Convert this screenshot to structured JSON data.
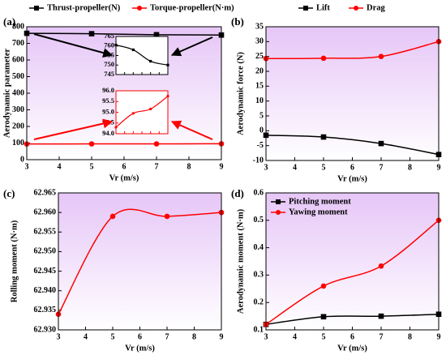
{
  "chart_data": [
    {
      "type": "line",
      "label": "(a)",
      "ylabel": "Aerodynamic parameter",
      "xlabel": "Vr (m/s)",
      "x": [
        3,
        5,
        7,
        9
      ],
      "xlim": [
        3,
        9
      ],
      "xticks": [
        3,
        4,
        5,
        6,
        7,
        8,
        9
      ],
      "ylim": [
        0,
        800
      ],
      "yticks": [
        0,
        100,
        200,
        300,
        400,
        500,
        600,
        700,
        800
      ],
      "legend": "top",
      "series": [
        {
          "name": "Thrust-propeller(N)",
          "color": "#000000",
          "marker": "square",
          "values": [
            760.5,
            758,
            752,
            750
          ],
          "inset": {
            "ylim": [
              745,
              765
            ],
            "yticks": [
              745,
              750,
              755,
              760,
              765
            ]
          }
        },
        {
          "name": "Torque-propeller(N·m)",
          "color": "#ff0000",
          "marker": "circle",
          "values": [
            94.3,
            94.95,
            95.15,
            95.75
          ],
          "inset": {
            "ylim": [
              94,
              96
            ],
            "yticks": [
              {
                "value": 94,
                "label": "94.0"
              },
              {
                "value": 94.5,
                "label": "94.5"
              },
              {
                "value": 95,
                "label": "95.0"
              },
              {
                "value": 95.5,
                "label": "95.5"
              },
              {
                "value": 96,
                "label": "96.0"
              }
            ]
          }
        }
      ]
    },
    {
      "type": "line",
      "label": "(b)",
      "ylabel": "Aerodynamic force (N)",
      "xlabel": "Vr (m/s)",
      "x": [
        3,
        5,
        7,
        9
      ],
      "xlim": [
        3,
        9
      ],
      "xticks": [
        3,
        4,
        5,
        6,
        7,
        8,
        9
      ],
      "ylim": [
        -10,
        35
      ],
      "yticks": [
        -10,
        -5,
        0,
        5,
        10,
        15,
        20,
        25,
        30,
        35
      ],
      "legend": "top",
      "series": [
        {
          "name": "Lift",
          "color": "#000000",
          "marker": "square",
          "values": [
            -1.5,
            -2.1,
            -4.3,
            -8
          ]
        },
        {
          "name": "Drag",
          "color": "#ff0000",
          "marker": "circle",
          "values": [
            24.3,
            24.4,
            25,
            30
          ]
        }
      ]
    },
    {
      "type": "line",
      "label": "(c)",
      "ylabel": "Rolling moment (N·m)",
      "xlabel": "Vr (m/s)",
      "x": [
        3,
        5,
        7,
        9
      ],
      "xlim": [
        3,
        9
      ],
      "xticks": [
        3,
        4,
        5,
        6,
        7,
        8,
        9
      ],
      "ylim": [
        62.93,
        62.965
      ],
      "yticks": [
        {
          "value": 62.93,
          "label": "62.930"
        },
        {
          "value": 62.935,
          "label": "62.935"
        },
        {
          "value": 62.94,
          "label": "62.940"
        },
        {
          "value": 62.945,
          "label": "62.945"
        },
        {
          "value": 62.95,
          "label": "62.950"
        },
        {
          "value": 62.955,
          "label": "62.955"
        },
        {
          "value": 62.96,
          "label": "62.960"
        },
        {
          "value": 62.965,
          "label": "62.965"
        }
      ],
      "series": [
        {
          "color": "#ff0000",
          "marker": "circle",
          "values": [
            62.934,
            62.959,
            62.959,
            62.96
          ]
        }
      ]
    },
    {
      "type": "line",
      "label": "(d)",
      "ylabel": "Aerodynamic moment (N·m)",
      "xlabel": "Vr (m/s)",
      "x": [
        3,
        5,
        7,
        9
      ],
      "xlim": [
        3,
        9
      ],
      "xticks": [
        3,
        4,
        5,
        6,
        7,
        8,
        9
      ],
      "ylim": [
        0.1,
        0.6
      ],
      "yticks": [
        0.1,
        0.2,
        0.3,
        0.4,
        0.5,
        0.6
      ],
      "legend": "upper left",
      "series": [
        {
          "name": "Pitching moment",
          "color": "#000000",
          "marker": "square",
          "values": [
            0.12,
            0.148,
            0.15,
            0.157
          ]
        },
        {
          "name": "Yawing moment",
          "color": "#ff0000",
          "marker": "circle",
          "values": [
            0.12,
            0.26,
            0.333,
            0.5
          ]
        }
      ]
    }
  ]
}
